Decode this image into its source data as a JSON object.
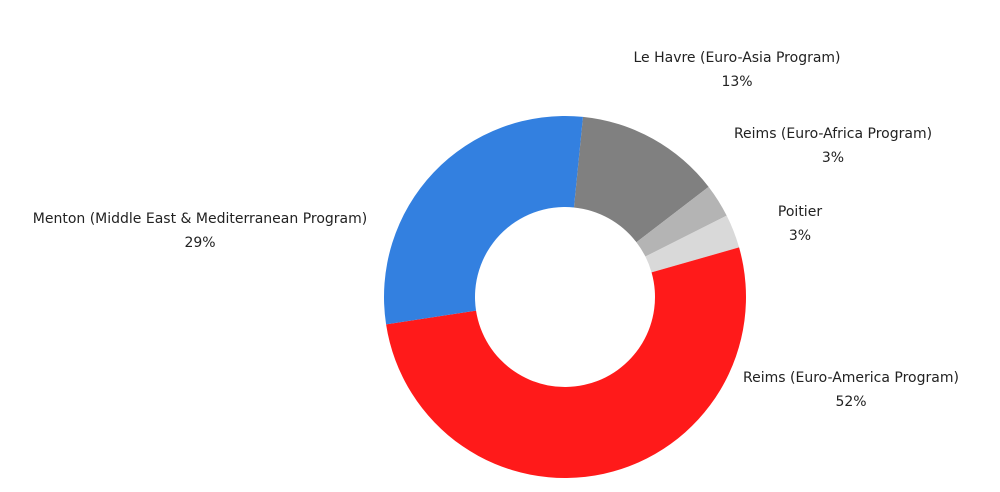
{
  "chart_data": {
    "type": "donut",
    "categories": [
      "Le Havre (Euro-Asia Program)",
      "Reims (Euro-Africa Program)",
      "Poitier",
      "Reims (Euro-America Program)",
      "Menton (Middle East & Mediterranean Program)"
    ],
    "values": [
      13,
      3,
      3,
      52,
      29
    ],
    "value_labels": [
      "13%",
      "3%",
      "3%",
      "52%",
      "29%"
    ],
    "colors": [
      "#808080",
      "#b4b4b4",
      "#d9d9d9",
      "#ff1a1a",
      "#3380e0"
    ]
  }
}
